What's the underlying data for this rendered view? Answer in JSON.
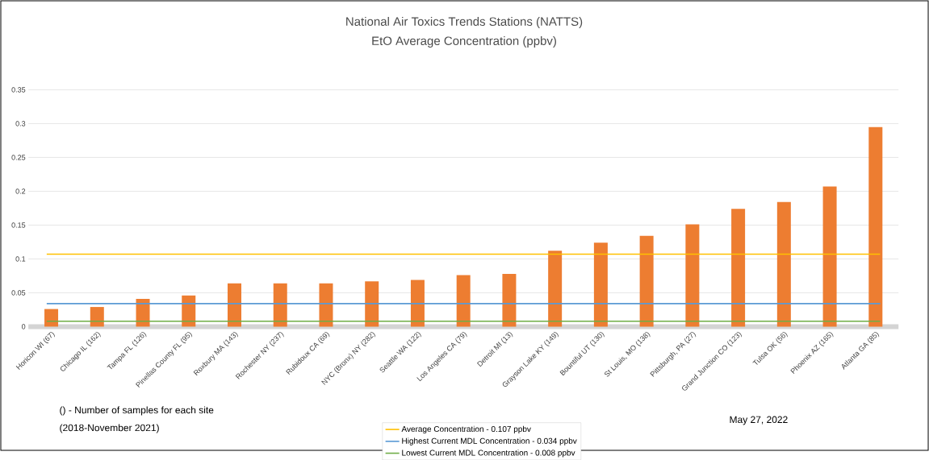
{
  "chart_data": {
    "type": "bar",
    "title": "National Air Toxics Trends Stations (NATTS)",
    "subtitle": "EtO Average Concentration (ppbv)",
    "categories": [
      "Horicon WI (67)",
      "Chicago IL (162)",
      "Tampa FL (126)",
      "Pinellas County FL (95)",
      "Roxbury MA (143)",
      "Rochester NY (237)",
      "Rubidoux CA (69)",
      "NYC (Bronx) NY (282)",
      "Seattle WA (122)",
      "Los Angeles CA (79)",
      "Detroit MI (13)",
      "Grayson Lake KY (149)",
      "Bountiful UT (130)",
      "St Louis, MO (138)",
      "Pittsburgh, PA (27)",
      "Grand Junction CO (123)",
      "Tulsa OK (56)",
      "Phoenix AZ (165)",
      "Atlanta GA (85)"
    ],
    "values": [
      0.026,
      0.029,
      0.041,
      0.046,
      0.064,
      0.064,
      0.064,
      0.067,
      0.069,
      0.076,
      0.078,
      0.112,
      0.124,
      0.134,
      0.151,
      0.174,
      0.184,
      0.207,
      0.295
    ],
    "color": "#ed7d31",
    "ylim": [
      0,
      0.35
    ],
    "yticks": [
      0,
      0.05,
      0.1,
      0.15,
      0.2,
      0.25,
      0.3,
      0.35
    ],
    "grid": "y",
    "legend": "bottom",
    "ref_lines": [
      {
        "axis": "y",
        "value": 0.107,
        "label": "Average Concentration - 0.107 ppbv",
        "color": "#ffc000"
      },
      {
        "axis": "y",
        "value": 0.034,
        "label": "Highest Current MDL Concentration - 0.034 ppbv",
        "color": "#5b9bd5"
      },
      {
        "axis": "y",
        "value": 0.008,
        "label": "Lowest Current MDL Concentration - 0.008 ppbv",
        "color": "#70ad47"
      }
    ],
    "annotations": [
      "() - Number of samples for each site",
      "(2018-November 2021)",
      "May 27, 2022"
    ]
  }
}
